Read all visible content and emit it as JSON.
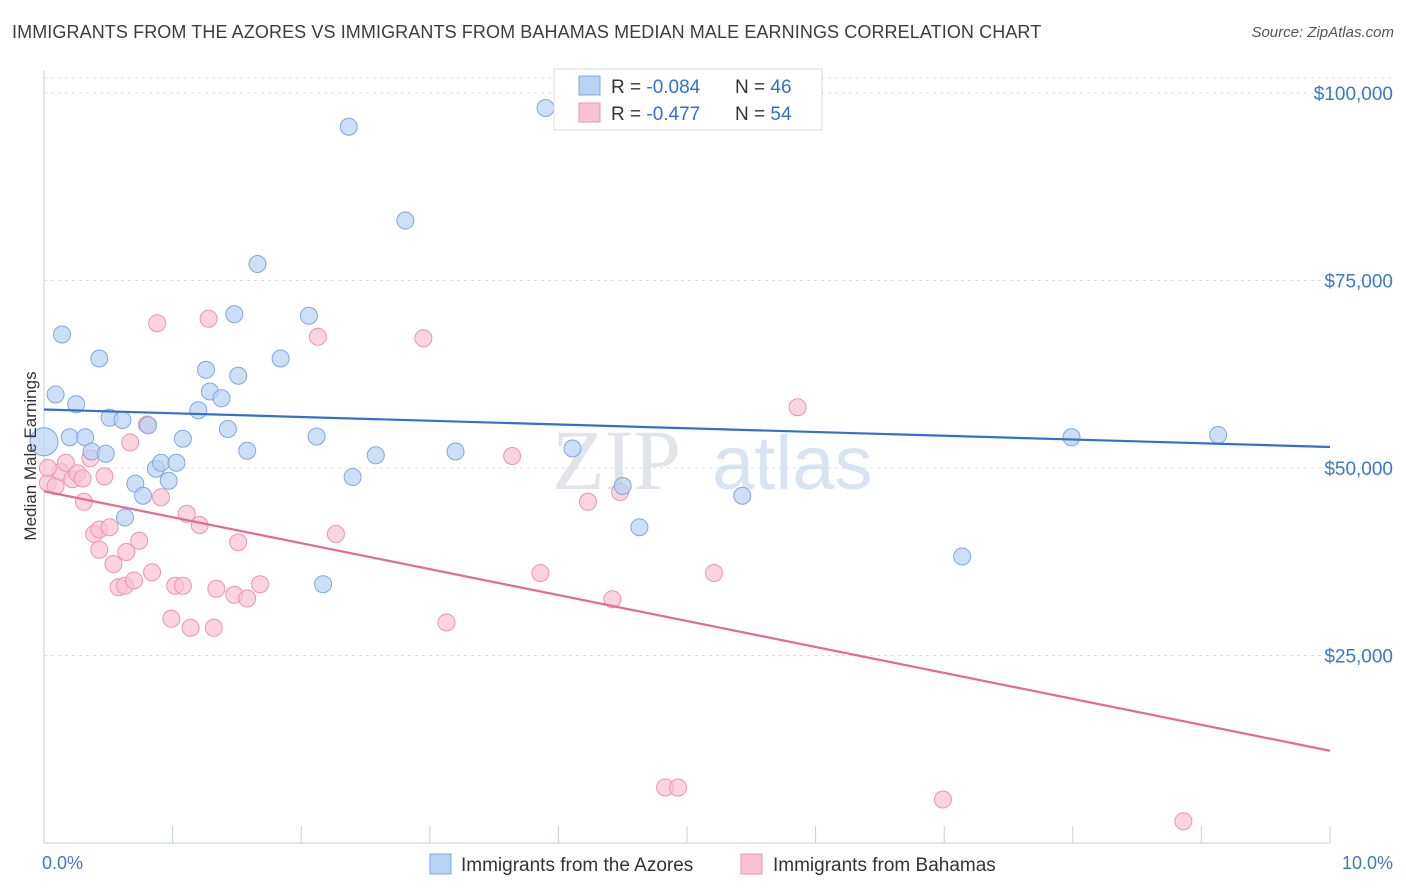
{
  "header": {
    "title": "IMMIGRANTS FROM THE AZORES VS IMMIGRANTS FROM BAHAMAS MEDIAN MALE EARNINGS CORRELATION CHART",
    "source": "Source: ZipAtlas.com"
  },
  "watermark": {
    "zip": "ZIP",
    "atlas": "atlas"
  },
  "legend": {
    "r_label": "R = ",
    "n_label": "N = ",
    "series1_r": "-0.084",
    "series1_n": "46",
    "series2_r": "-0.477",
    "series2_n": "54"
  },
  "chart_data": {
    "type": "scatter",
    "title": "IMMIGRANTS FROM THE AZORES VS IMMIGRANTS FROM BAHAMAS MEDIAN MALE EARNINGS CORRELATION CHART",
    "xlabel": "",
    "ylabel": "Median Male Earnings",
    "xlim": [
      0,
      10
    ],
    "ylim": [
      0,
      102000
    ],
    "x_tick_labels": [
      "0.0%",
      "10.0%"
    ],
    "y_ticks": [
      25000,
      50000,
      75000,
      100000
    ],
    "y_tick_labels": [
      "$25,000",
      "$50,000",
      "$75,000",
      "$100,000"
    ],
    "grid": true,
    "colors": {
      "azores_fill": "#b8d2f2",
      "azores_stroke": "#7fa8e0",
      "azores_line": "#2f72cc",
      "bahamas_fill": "#f9c2d3",
      "bahamas_stroke": "#ee94b0",
      "bahamas_line": "#e46a93",
      "grid": "#d9dde3",
      "tick_label": "#3d78c7"
    },
    "series": [
      {
        "name": "Immigrants from the Azores",
        "r": -0.084,
        "n": 46,
        "trend": {
          "x": [
            0.0,
            10.0
          ],
          "y": [
            57800,
            52800
          ]
        },
        "points": [
          {
            "x": 0.0,
            "y": 53500
          },
          {
            "x": 0.09,
            "y": 59800
          },
          {
            "x": 0.14,
            "y": 67800
          },
          {
            "x": 0.2,
            "y": 54100
          },
          {
            "x": 0.25,
            "y": 58500
          },
          {
            "x": 0.32,
            "y": 54100
          },
          {
            "x": 0.43,
            "y": 64600
          },
          {
            "x": 0.37,
            "y": 52200
          },
          {
            "x": 0.48,
            "y": 51900
          },
          {
            "x": 0.51,
            "y": 56700
          },
          {
            "x": 0.61,
            "y": 56400
          },
          {
            "x": 0.63,
            "y": 43400
          },
          {
            "x": 0.71,
            "y": 47900
          },
          {
            "x": 0.77,
            "y": 46300
          },
          {
            "x": 0.81,
            "y": 55700
          },
          {
            "x": 0.87,
            "y": 49900
          },
          {
            "x": 0.91,
            "y": 50700
          },
          {
            "x": 0.97,
            "y": 48300
          },
          {
            "x": 1.03,
            "y": 50700
          },
          {
            "x": 1.08,
            "y": 53900
          },
          {
            "x": 1.2,
            "y": 57700
          },
          {
            "x": 1.26,
            "y": 63100
          },
          {
            "x": 1.29,
            "y": 60200
          },
          {
            "x": 1.38,
            "y": 59300
          },
          {
            "x": 1.43,
            "y": 55200
          },
          {
            "x": 1.48,
            "y": 70500
          },
          {
            "x": 1.51,
            "y": 62300
          },
          {
            "x": 1.58,
            "y": 52300
          },
          {
            "x": 1.66,
            "y": 77200
          },
          {
            "x": 1.84,
            "y": 64600
          },
          {
            "x": 2.06,
            "y": 70300
          },
          {
            "x": 2.12,
            "y": 54200
          },
          {
            "x": 2.17,
            "y": 34500
          },
          {
            "x": 2.37,
            "y": 95500
          },
          {
            "x": 2.4,
            "y": 48800
          },
          {
            "x": 2.58,
            "y": 51700
          },
          {
            "x": 2.81,
            "y": 83000
          },
          {
            "x": 3.2,
            "y": 52200
          },
          {
            "x": 3.9,
            "y": 98000
          },
          {
            "x": 4.11,
            "y": 52600
          },
          {
            "x": 4.5,
            "y": 47600
          },
          {
            "x": 4.63,
            "y": 42100
          },
          {
            "x": 5.43,
            "y": 46300
          },
          {
            "x": 7.14,
            "y": 38200
          },
          {
            "x": 7.99,
            "y": 54100
          },
          {
            "x": 9.13,
            "y": 54400
          }
        ]
      },
      {
        "name": "Immigrants from Bahamas",
        "r": -0.477,
        "n": 54,
        "trend": {
          "x": [
            0.0,
            10.0
          ],
          "y": [
            46900,
            12300
          ]
        },
        "points": [
          {
            "x": 0.03,
            "y": 48000
          },
          {
            "x": 0.09,
            "y": 47600
          },
          {
            "x": 0.13,
            "y": 49500
          },
          {
            "x": 0.17,
            "y": 50700
          },
          {
            "x": 0.22,
            "y": 48500
          },
          {
            "x": 0.26,
            "y": 49300
          },
          {
            "x": 0.3,
            "y": 48600
          },
          {
            "x": 0.31,
            "y": 45500
          },
          {
            "x": 0.36,
            "y": 51300
          },
          {
            "x": 0.39,
            "y": 41200
          },
          {
            "x": 0.43,
            "y": 41800
          },
          {
            "x": 0.43,
            "y": 39100
          },
          {
            "x": 0.47,
            "y": 48900
          },
          {
            "x": 0.51,
            "y": 42100
          },
          {
            "x": 0.54,
            "y": 37200
          },
          {
            "x": 0.58,
            "y": 34100
          },
          {
            "x": 0.63,
            "y": 34300
          },
          {
            "x": 0.64,
            "y": 38800
          },
          {
            "x": 0.67,
            "y": 53400
          },
          {
            "x": 0.7,
            "y": 35000
          },
          {
            "x": 0.74,
            "y": 40300
          },
          {
            "x": 0.8,
            "y": 55800
          },
          {
            "x": 0.84,
            "y": 36100
          },
          {
            "x": 0.88,
            "y": 69300
          },
          {
            "x": 0.91,
            "y": 46100
          },
          {
            "x": 0.99,
            "y": 29900
          },
          {
            "x": 1.02,
            "y": 34300
          },
          {
            "x": 1.08,
            "y": 34300
          },
          {
            "x": 1.11,
            "y": 43900
          },
          {
            "x": 1.14,
            "y": 28700
          },
          {
            "x": 1.21,
            "y": 42400
          },
          {
            "x": 1.28,
            "y": 69900
          },
          {
            "x": 1.32,
            "y": 28700
          },
          {
            "x": 1.34,
            "y": 33900
          },
          {
            "x": 1.48,
            "y": 33100
          },
          {
            "x": 1.51,
            "y": 40100
          },
          {
            "x": 1.58,
            "y": 32600
          },
          {
            "x": 1.68,
            "y": 34500
          },
          {
            "x": 2.13,
            "y": 67500
          },
          {
            "x": 2.27,
            "y": 41200
          },
          {
            "x": 2.95,
            "y": 67300
          },
          {
            "x": 3.13,
            "y": 29400
          },
          {
            "x": 3.64,
            "y": 51600
          },
          {
            "x": 3.86,
            "y": 36000
          },
          {
            "x": 4.23,
            "y": 45500
          },
          {
            "x": 4.42,
            "y": 32500
          },
          {
            "x": 4.48,
            "y": 46800
          },
          {
            "x": 4.83,
            "y": 7400
          },
          {
            "x": 4.93,
            "y": 7400
          },
          {
            "x": 5.21,
            "y": 36000
          },
          {
            "x": 5.86,
            "y": 58100
          },
          {
            "x": 6.99,
            "y": 5800
          },
          {
            "x": 8.86,
            "y": 2900
          },
          {
            "x": 0.03,
            "y": 50000
          }
        ]
      }
    ]
  }
}
